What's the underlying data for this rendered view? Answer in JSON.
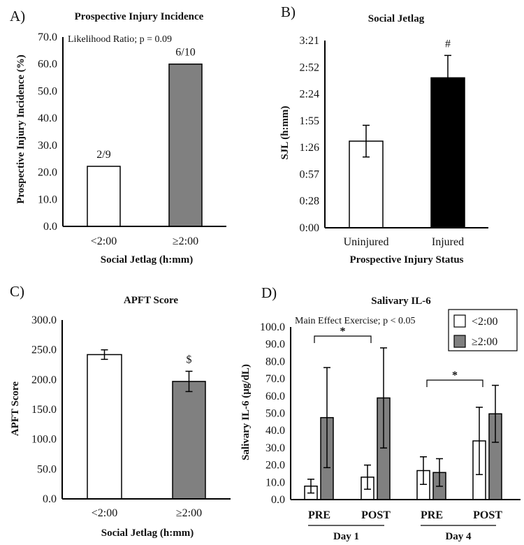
{
  "chart_data": [
    {
      "panel": "A)",
      "type": "bar",
      "title": "Prospective Injury Incidence",
      "ylabel": "Prospective Injury Incidence (%)",
      "xlabel": "Social Jetlag (h:mm)",
      "annotation": "Likelihood Ratio; p = 0.09",
      "categories": [
        "<2:00",
        "≥2:00"
      ],
      "values": [
        22.2,
        60.0
      ],
      "bar_labels": [
        "2/9",
        "6/10"
      ],
      "colors": [
        "#ffffff",
        "#808080"
      ],
      "ylim": [
        0,
        70
      ],
      "yticks": [
        "0.0",
        "10.0",
        "20.0",
        "30.0",
        "40.0",
        "50.0",
        "60.0",
        "70.0"
      ],
      "grid": false
    },
    {
      "panel": "B)",
      "type": "bar",
      "title": "Social Jetlag",
      "ylabel": "SJL (h:mm)",
      "xlabel": "Prospective Injury Status",
      "categories": [
        "Uninjured",
        "Injured"
      ],
      "values_minutes": [
        93,
        161
      ],
      "errors_minutes": [
        17,
        24
      ],
      "markers": [
        "",
        "#"
      ],
      "colors": [
        "#ffffff",
        "#000000"
      ],
      "ylim_minutes": [
        0,
        201
      ],
      "yticks": [
        "0:00",
        "0:28",
        "0:57",
        "1:26",
        "1:55",
        "2:24",
        "2:52",
        "3:21"
      ],
      "grid": false
    },
    {
      "panel": "C)",
      "type": "bar",
      "title": "APFT Score",
      "ylabel": "APFT Score",
      "xlabel": "Social Jetlag (h:mm)",
      "categories": [
        "<2:00",
        "≥2:00"
      ],
      "values": [
        242,
        197
      ],
      "errors": [
        8,
        17
      ],
      "markers": [
        "",
        "$"
      ],
      "colors": [
        "#ffffff",
        "#808080"
      ],
      "ylim": [
        0,
        300
      ],
      "yticks": [
        "0.0",
        "50.0",
        "100.0",
        "150.0",
        "200.0",
        "250.0",
        "300.0"
      ],
      "grid": false
    },
    {
      "panel": "D)",
      "type": "bar",
      "title": "Salivary IL-6",
      "ylabel": "Salivary IL-6 (µg/dL)",
      "annotation": "Main Effect Exercise; p < 0.05",
      "categories": [
        "PRE",
        "POST",
        "PRE",
        "POST"
      ],
      "groups": [
        "Day 1",
        "Day 4"
      ],
      "series": [
        {
          "name": "<2:00",
          "color": "#ffffff",
          "values": [
            7.8,
            13.0,
            16.8,
            34.0
          ],
          "errors": [
            4.0,
            7.0,
            8.0,
            19.5
          ]
        },
        {
          "name": "≥2:00",
          "color": "#808080",
          "values": [
            47.5,
            58.9,
            15.7,
            49.7
          ],
          "errors": [
            29.0,
            29.0,
            8.0,
            16.5
          ]
        }
      ],
      "brackets": [
        {
          "from": 0,
          "to": 1,
          "label": "*"
        },
        {
          "from": 2,
          "to": 3,
          "label": "*"
        }
      ],
      "ylim": [
        0,
        100
      ],
      "yticks": [
        "0.0",
        "10.0",
        "20.0",
        "30.0",
        "40.0",
        "50.0",
        "60.0",
        "70.0",
        "80.0",
        "90.0",
        "100.0"
      ],
      "legend": "top-right",
      "grid": false
    }
  ]
}
